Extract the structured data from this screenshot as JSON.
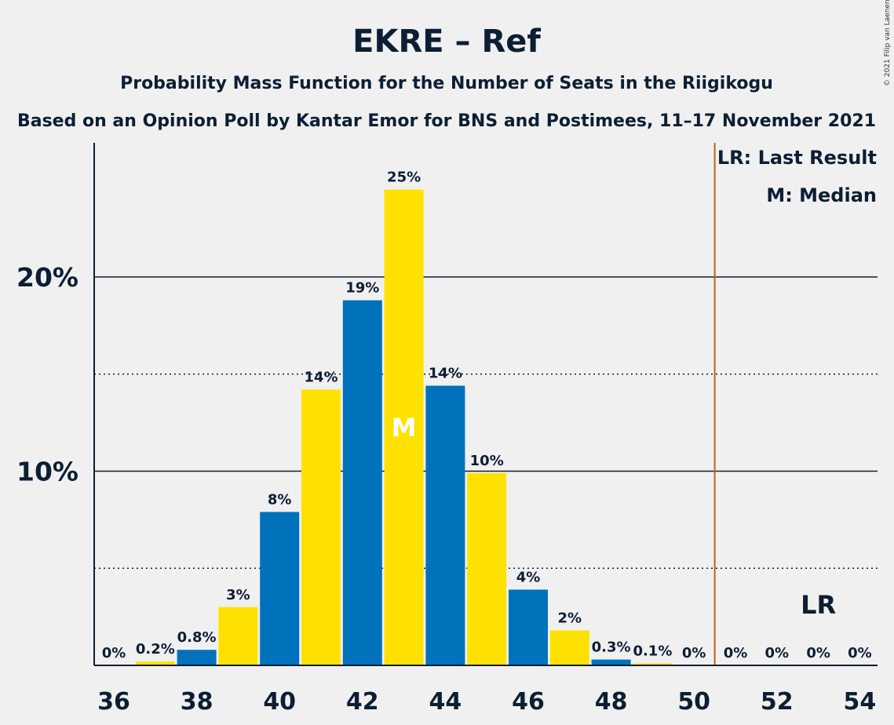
{
  "colors": {
    "background": "#f0f0f0",
    "blue": "#0072bb",
    "yellow": "#ffe100",
    "text": "#0c1e33",
    "last_result_line": "#c0611a"
  },
  "copyright": "© 2021 Filip van Laenen",
  "chart_data": {
    "type": "bar",
    "title": "EKRE – Ref",
    "subtitle": "Probability Mass Function for the Number of Seats in the Riigikogu",
    "subtitle2": "Based on an Opinion Poll by Kantar Emor for BNS and Postimees, 11–17 November 2021",
    "x": [
      36,
      37,
      38,
      39,
      40,
      41,
      42,
      43,
      44,
      45,
      46,
      47,
      48,
      49,
      50,
      51,
      52,
      53,
      54
    ],
    "values": [
      0,
      0.2,
      0.8,
      3,
      7.9,
      14.2,
      18.8,
      24.5,
      14.4,
      9.9,
      3.9,
      1.8,
      0.3,
      0.1,
      0,
      0,
      0,
      0,
      0
    ],
    "labels": [
      "0%",
      "0.2%",
      "0.8%",
      "3%",
      "8%",
      "14%",
      "19%",
      "25%",
      "14%",
      "10%",
      "4%",
      "2%",
      "0.3%",
      "0.1%",
      "0%",
      "0%",
      "0%",
      "0%",
      "0%"
    ],
    "x_ticks": [
      "36",
      "38",
      "40",
      "42",
      "44",
      "46",
      "48",
      "50",
      "52",
      "54"
    ],
    "y_ticks": [
      "10%",
      "20%"
    ],
    "y_major_gridlines": [
      10,
      20
    ],
    "y_minor_gridlines": [
      5,
      15
    ],
    "ylim": [
      0,
      27
    ],
    "median": 43,
    "median_label": "M",
    "last_result": 53,
    "last_result_label": "LR",
    "majority_line": 50.5,
    "legend": [
      "LR: Last Result",
      "M: Median"
    ],
    "legend_position": "top-right"
  }
}
